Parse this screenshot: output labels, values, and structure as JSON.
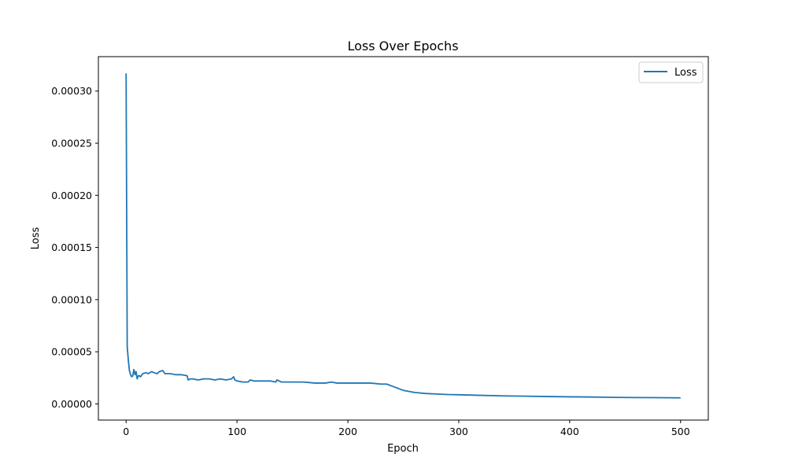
{
  "chart_data": {
    "type": "line",
    "title": "Loss Over Epochs",
    "xlabel": "Epoch",
    "ylabel": "Loss",
    "xlim": [
      -25,
      525
    ],
    "ylim": [
      -1.55e-05,
      0.000333
    ],
    "xticks": [
      0,
      100,
      200,
      300,
      400,
      500
    ],
    "xtick_labels": [
      "0",
      "100",
      "200",
      "300",
      "400",
      "500"
    ],
    "yticks": [
      0.0,
      5e-05,
      0.0001,
      0.00015,
      0.0002,
      0.00025,
      0.0003
    ],
    "ytick_labels": [
      "0.00000",
      "0.00005",
      "0.00010",
      "0.00015",
      "0.00020",
      "0.00025",
      "0.00030"
    ],
    "grid": false,
    "legend_position": "top-right",
    "series": [
      {
        "name": "Loss",
        "color": "#1f77b4",
        "x": [
          0,
          1,
          2,
          3,
          4,
          5,
          6,
          7,
          8,
          9,
          10,
          11,
          12,
          13,
          15,
          18,
          20,
          23,
          25,
          28,
          30,
          33,
          35,
          40,
          45,
          50,
          55,
          56,
          58,
          60,
          65,
          70,
          75,
          80,
          85,
          90,
          95,
          97,
          98,
          100,
          105,
          110,
          112,
          115,
          120,
          125,
          130,
          135,
          136,
          140,
          150,
          160,
          170,
          180,
          185,
          190,
          200,
          210,
          220,
          230,
          235,
          240,
          245,
          250,
          260,
          270,
          280,
          290,
          300,
          320,
          340,
          360,
          380,
          400,
          420,
          440,
          460,
          480,
          500
        ],
        "values": [
          0.000317,
          5.5e-05,
          4.2e-05,
          3.2e-05,
          2.8e-05,
          2.6e-05,
          2.7e-05,
          3.3e-05,
          2.8e-05,
          3.1e-05,
          2.4e-05,
          2.7e-05,
          2.7e-05,
          2.6e-05,
          2.9e-05,
          3e-05,
          2.9e-05,
          3.1e-05,
          3e-05,
          2.9e-05,
          3.1e-05,
          3.2e-05,
          2.9e-05,
          2.9e-05,
          2.8e-05,
          2.8e-05,
          2.7e-05,
          2.3e-05,
          2.4e-05,
          2.4e-05,
          2.3e-05,
          2.4e-05,
          2.4e-05,
          2.3e-05,
          2.4e-05,
          2.3e-05,
          2.4e-05,
          2.6e-05,
          2.3e-05,
          2.2e-05,
          2.1e-05,
          2.1e-05,
          2.3e-05,
          2.2e-05,
          2.2e-05,
          2.2e-05,
          2.2e-05,
          2.1e-05,
          2.3e-05,
          2.1e-05,
          2.1e-05,
          2.1e-05,
          2e-05,
          2e-05,
          2.1e-05,
          2e-05,
          2e-05,
          2e-05,
          2e-05,
          1.9e-05,
          1.9e-05,
          1.7e-05,
          1.5e-05,
          1.3e-05,
          1.1e-05,
          1e-05,
          9.5e-06,
          9e-06,
          8.8e-06,
          8.2e-06,
          7.7e-06,
          7.4e-06,
          7.1e-06,
          6.8e-06,
          6.6e-06,
          6.3e-06,
          6.1e-06,
          6e-06,
          5.8e-06
        ]
      }
    ]
  }
}
